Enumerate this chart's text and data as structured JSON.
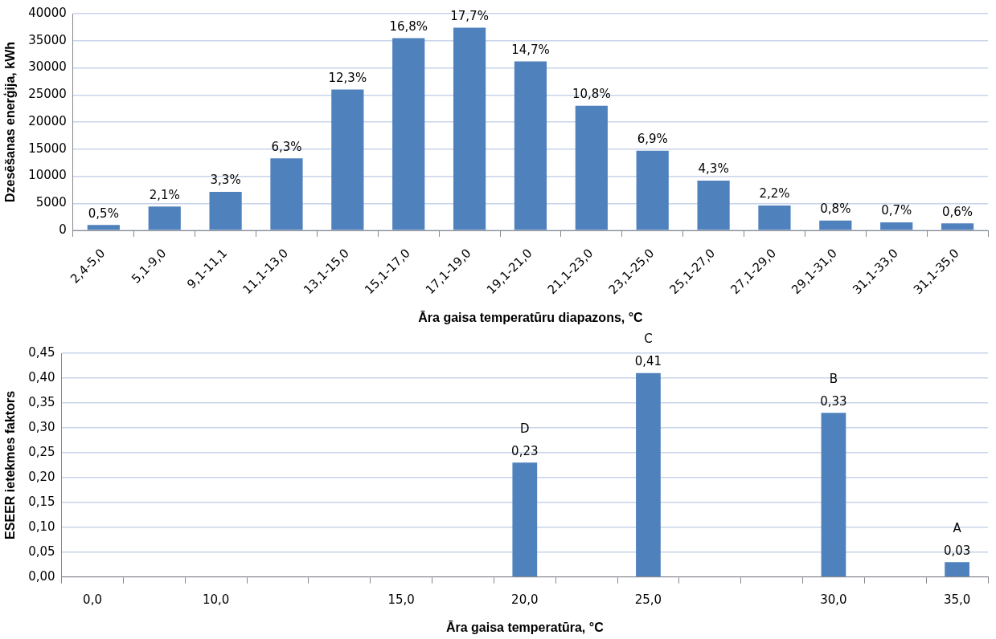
{
  "chart_data": [
    {
      "type": "bar",
      "xlabel": "Āra gaisa temperatūru diapazons, °C",
      "ylabel": "Dzesēšanas enerģija, kWh",
      "categories": [
        "2,4-5,0",
        "5,1-9,0",
        "9,1-11,1",
        "11,1-13,0",
        "13,1-15,0",
        "15,1-17,0",
        "17,1-19,0",
        "19,1-21,0",
        "21,1-23,0",
        "23,1-25,0",
        "25,1-27,0",
        "27,1-29,0",
        "29,1-31,0",
        "31,1-33,0",
        "31,1-35,0"
      ],
      "values": [
        1000,
        4400,
        7100,
        13300,
        26000,
        35500,
        37400,
        31200,
        23000,
        14700,
        9200,
        4600,
        1800,
        1500,
        1300
      ],
      "annotations": [
        {
          "text": "0,5%",
          "x": "2,4-5,0",
          "y": 1000
        },
        {
          "text": "2,1%",
          "x": "5,1-9,0",
          "y": 4400
        },
        {
          "text": "3,3%",
          "x": "9,1-11,1",
          "y": 7100
        },
        {
          "text": "6,3%",
          "x": "11,1-13,0",
          "y": 13300
        },
        {
          "text": "12,3%",
          "x": "13,1-15,0",
          "y": 26000
        },
        {
          "text": "16,8%",
          "x": "15,1-17,0",
          "y": 35500
        },
        {
          "text": "17,7%",
          "x": "17,1-19,0",
          "y": 37400
        },
        {
          "text": "14,7%",
          "x": "19,1-21,0",
          "y": 31200
        },
        {
          "text": "10,8%",
          "x": "21,1-23,0",
          "y": 23000
        },
        {
          "text": "6,9%",
          "x": "23,1-25,0",
          "y": 14700
        },
        {
          "text": "4,3%",
          "x": "25,1-27,0",
          "y": 9200
        },
        {
          "text": "2,2%",
          "x": "27,1-29,0",
          "y": 4600
        },
        {
          "text": "0,8%",
          "x": "29,1-31,0",
          "y": 1800
        },
        {
          "text": "0,7%",
          "x": "31,1-33,0",
          "y": 1500
        },
        {
          "text": "0,6%",
          "x": "31,1-35,0",
          "y": 1300
        }
      ],
      "color": "#4f81bd",
      "ylim": [
        0,
        40000
      ],
      "yticks": [
        0,
        5000,
        10000,
        15000,
        20000,
        25000,
        30000,
        35000,
        40000
      ],
      "grid": "y",
      "legend": false
    },
    {
      "type": "bar",
      "xlabel": "Āra gaisa temperatūra, °C",
      "ylabel": "ESEER ietekmes faktors",
      "categories": [
        "0,0",
        null,
        "10,0",
        null,
        null,
        "15,0",
        null,
        "20,0",
        null,
        "25,0",
        null,
        null,
        "30,0",
        null,
        "35,0"
      ],
      "values": [
        null,
        null,
        null,
        null,
        null,
        null,
        null,
        0.23,
        null,
        0.41,
        null,
        null,
        0.33,
        null,
        0.03
      ],
      "value_labels": [
        null,
        null,
        null,
        null,
        null,
        null,
        null,
        "0,23",
        null,
        "0,41",
        null,
        null,
        "0,33",
        null,
        "0,03"
      ],
      "annotations": [
        {
          "text": "D",
          "x": "20,0",
          "y": 0.23
        },
        {
          "text": "C",
          "x": "25,0",
          "y": 0.41
        },
        {
          "text": "B",
          "x": "30,0",
          "y": 0.33
        },
        {
          "text": "A",
          "x": "35,0",
          "y": 0.03
        }
      ],
      "color": "#4f81bd",
      "ylim": [
        0,
        0.45
      ],
      "yticks": [
        {
          "value": 0,
          "label": "0,00"
        },
        {
          "value": 0.05,
          "label": "0,05"
        },
        {
          "value": 0.1,
          "label": "0,10"
        },
        {
          "value": 0.15,
          "label": "0,15"
        },
        {
          "value": 0.2,
          "label": "0,20"
        },
        {
          "value": 0.25,
          "label": "0,25"
        },
        {
          "value": 0.3,
          "label": "0,30"
        },
        {
          "value": 0.35,
          "label": "0,35"
        },
        {
          "value": 0.4,
          "label": "0,40"
        },
        {
          "value": 0.45,
          "label": "0,45"
        }
      ],
      "grid": "y",
      "legend": false
    }
  ]
}
